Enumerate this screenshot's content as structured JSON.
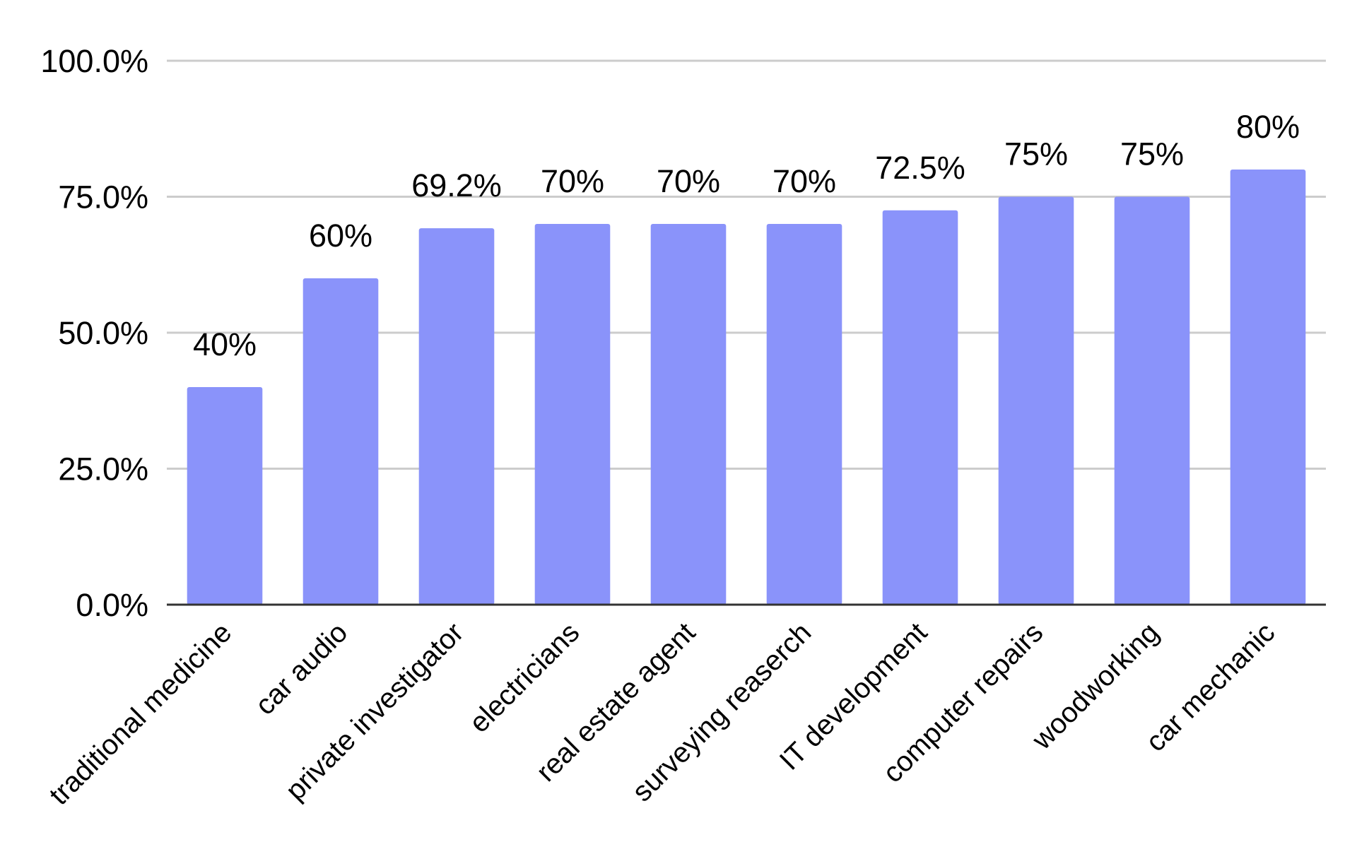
{
  "chart_data": {
    "type": "bar",
    "title": "",
    "xlabel": "",
    "ylabel": "",
    "categories": [
      "traditional medicine",
      "car audio",
      "private investigator",
      "electricians",
      "real estate agent",
      "surveying reaserch",
      "IT development",
      "computer repairs",
      "woodworking",
      "car mechanic"
    ],
    "values": [
      40,
      60,
      69.2,
      70,
      70,
      70,
      72.5,
      75,
      75,
      80
    ],
    "data_labels": [
      "40%",
      "60%",
      "69.2%",
      "70%",
      "70%",
      "70%",
      "72.5%",
      "75%",
      "75%",
      "80%"
    ],
    "y_ticks": [
      0,
      25,
      50,
      75,
      100
    ],
    "y_tick_labels": [
      "0.0%",
      "25.0%",
      "50.0%",
      "75.0%",
      "100.0%"
    ],
    "ylim": [
      0,
      100
    ],
    "grid": true,
    "legend": "none",
    "colors": {
      "bar": "#8a93fa",
      "grid": "#cccccc",
      "axis": "#333333",
      "text": "#000000"
    }
  }
}
